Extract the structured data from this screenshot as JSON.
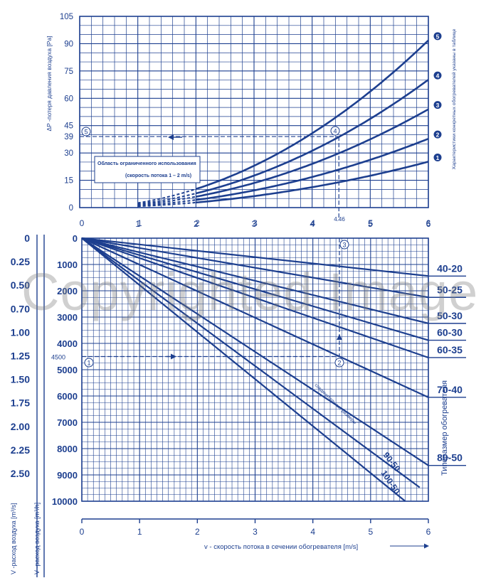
{
  "colors": {
    "accent": "#1d3f8f",
    "grid": "#1d3f8f",
    "background": "#ffffff"
  },
  "watermark": "Copyrighted Image",
  "chart_data": [
    {
      "type": "line",
      "ylabel": "ΔP -потеря давления воздуха [Pa]",
      "right_label": "Характеристики конкретных обогревателей указаны в таблице",
      "xlim": [
        0,
        6
      ],
      "ylim": [
        0,
        105
      ],
      "x_ticks": [
        "1",
        "2",
        "3",
        "4",
        "5",
        "6"
      ],
      "y_ticks": [
        "105",
        "90",
        "75",
        "60",
        "45",
        "39",
        "30",
        "15",
        "0"
      ],
      "annotation_title": "Область ограниченного использования",
      "annotation_subtitle": "(скорость потока 1 – 2 m/s)",
      "example_value": "39",
      "example_x": 4.46,
      "markers": [
        "⑤",
        "④"
      ],
      "series": [
        {
          "name": "1",
          "k": 0.7
        },
        {
          "name": "2",
          "k": 1.05
        },
        {
          "name": "3",
          "k": 1.5
        },
        {
          "name": "4",
          "k": 1.95
        },
        {
          "name": "5",
          "k": 2.55
        }
      ]
    },
    {
      "type": "line",
      "xlabel": "v - скорость потока в сечении обогревателя [m/s]",
      "ylabel_v": "V -расход воздуха [m³/s]",
      "ylabel_h": "V -расход воздуха [m³/h]",
      "right_title": "Типоразмер обогревателя",
      "xlim": [
        0,
        6
      ],
      "ylim": [
        0,
        10000
      ],
      "x_ticks": [
        "0",
        "1",
        "2",
        "3",
        "4",
        "5",
        "6"
      ],
      "top_x_ticks": [
        "0",
        "1",
        "2",
        "3",
        "4",
        "5",
        "6"
      ],
      "y_ticks_h": [
        "0",
        "1000",
        "2000",
        "3000",
        "4000",
        "5000",
        "6000",
        "7000",
        "8000",
        "9000",
        "10000"
      ],
      "y_ticks_s": [
        "0",
        "0.25",
        "0.50",
        "0.70",
        "1.00",
        "1.25",
        "1.50",
        "1.75",
        "2.00",
        "2.25",
        "2.50"
      ],
      "example_value": "4500",
      "example_x_label": "4.46",
      "markers": [
        "①",
        "②",
        "③"
      ],
      "series_label": "соединительные размеры",
      "series": [
        {
          "name": "40-20",
          "v_at_6": 1440
        },
        {
          "name": "50-25",
          "v_at_6": 2250
        },
        {
          "name": "50-30",
          "v_at_6": 3240
        },
        {
          "name": "60-30",
          "v_at_6": 3880
        },
        {
          "name": "60-35",
          "v_at_6": 4540
        },
        {
          "name": "70-40",
          "v_at_6": 6050
        },
        {
          "name": "80-50",
          "v_at_6": 8640
        },
        {
          "name": "90-50",
          "v_at_6": 9720
        },
        {
          "name": "100-50",
          "v_at_6": 10800
        }
      ]
    }
  ]
}
